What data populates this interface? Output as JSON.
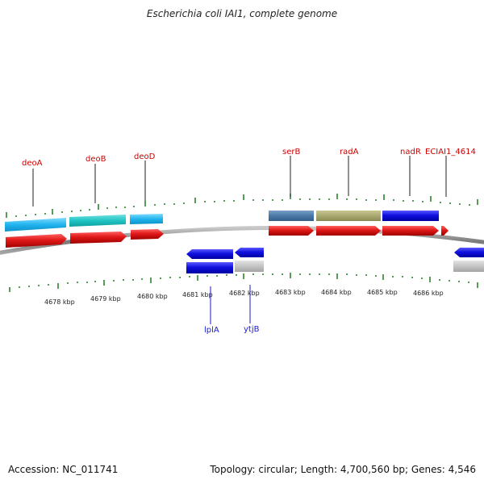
{
  "title": "Escherichia coli IAI1, complete genome",
  "footer": {
    "accession": "Accession: NC_011741",
    "summary": "Topology: circular; Length: 4,700,560 bp; Genes: 4,546"
  },
  "axis_labels": [
    "4678 kbp",
    "4679 kbp",
    "4680 kbp",
    "4681 kbp",
    "4682 kbp",
    "4683 kbp",
    "4684 kbp",
    "4685 kbp",
    "4686 kbp"
  ],
  "upper_genes": [
    "deoA",
    "deoB",
    "deoD",
    "serB",
    "radA",
    "nadR",
    "ECIAI1_4614"
  ],
  "lower_genes": [
    "lplA",
    "ytjB"
  ],
  "colors": {
    "forward_cds": "#e01818",
    "reverse_cds": "#1010e0",
    "label_top": "#cc0000",
    "label_bottom": "#1a1acc",
    "backbone": "#888888",
    "tick": "#1e7a1e"
  }
}
